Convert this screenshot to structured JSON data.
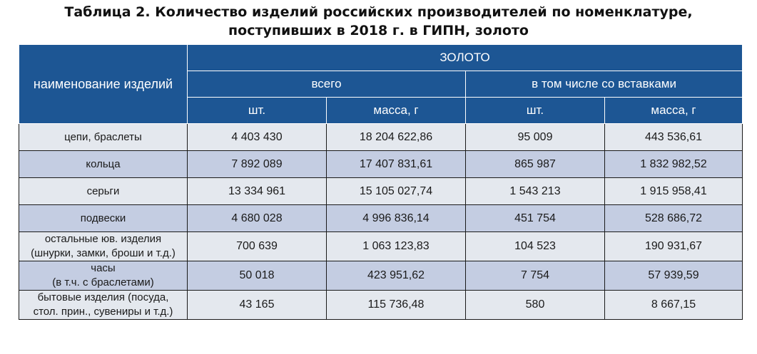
{
  "title": {
    "line1": "Таблица 2. Количество  изделий российских производителей по номенклатуре,",
    "line2": "поступивших в 2018 г. в ГИПН, золото"
  },
  "header": {
    "name_col": "наименование изделий",
    "metal": "ЗОЛОТО",
    "group_total": "всего",
    "group_inserts": "в том числе со вставками",
    "col_pcs": "шт.",
    "col_mass": "масса, г"
  },
  "rows": [
    {
      "name": "цепи, браслеты",
      "name2": "",
      "total_pcs": "4 403 430",
      "total_mass": "18 204 622,86",
      "ins_pcs": "95 009",
      "ins_mass": "443 536,61"
    },
    {
      "name": "кольца",
      "name2": "",
      "total_pcs": "7 892 089",
      "total_mass": "17 407 831,61",
      "ins_pcs": "865 987",
      "ins_mass": "1 832 982,52"
    },
    {
      "name": "серьги",
      "name2": "",
      "total_pcs": "13 334 961",
      "total_mass": "15 105 027,74",
      "ins_pcs": "1 543 213",
      "ins_mass": "1 915 958,41"
    },
    {
      "name": "подвески",
      "name2": "",
      "total_pcs": "4 680 028",
      "total_mass": "4 996 836,14",
      "ins_pcs": "451 754",
      "ins_mass": "528 686,72"
    },
    {
      "name": "остальные юв. изделия",
      "name2": "(шнурки, замки, броши и т.д.)",
      "total_pcs": "700 639",
      "total_mass": "1 063 123,83",
      "ins_pcs": "104 523",
      "ins_mass": "190 931,67"
    },
    {
      "name": "часы",
      "name2": "(в т.ч. с браслетами)",
      "total_pcs": "50 018",
      "total_mass": "423 951,62",
      "ins_pcs": "7 754",
      "ins_mass": "57 939,59"
    },
    {
      "name": "бытовые изделия (посуда,",
      "name2": "стол. прин., сувениры и т.д.)",
      "total_pcs": "43 165",
      "total_mass": "115 736,48",
      "ins_pcs": "580",
      "ins_mass": "8 667,15"
    }
  ]
}
